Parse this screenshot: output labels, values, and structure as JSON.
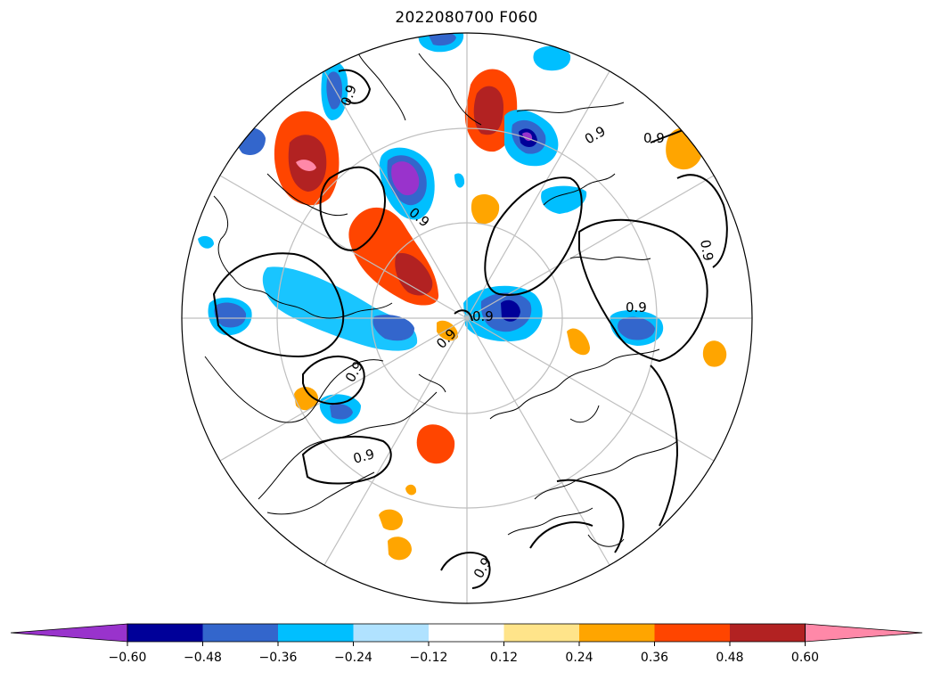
{
  "title": "2022080700 F060",
  "map": {
    "projection": "north-polar-stereographic",
    "graticule_color": "#bfbfbf",
    "contour_label": "0.9"
  },
  "colorbar": {
    "colors": [
      "#9933cc",
      "#000099",
      "#3366cc",
      "#00bfff",
      "#b0e2ff",
      "#ffffff",
      "#ffe48a",
      "#ffa500",
      "#ff4500",
      "#b22222",
      "#ff88a8"
    ],
    "ticks": [
      "−0.60",
      "−0.48",
      "−0.36",
      "−0.24",
      "−0.12",
      "0.12",
      "0.24",
      "0.36",
      "0.48",
      "0.60"
    ],
    "extend": "both"
  }
}
